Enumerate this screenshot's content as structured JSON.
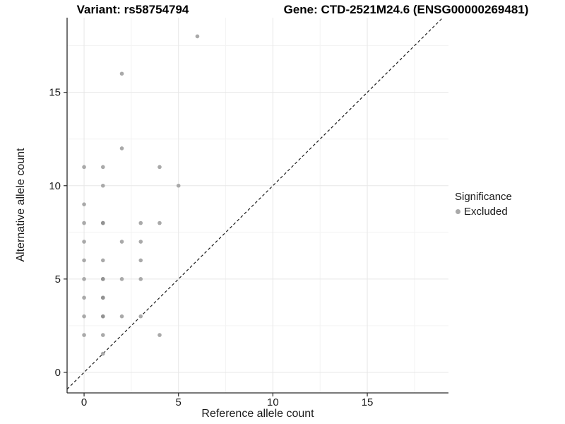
{
  "header": {
    "variant_title": "Variant: rs58754794",
    "gene_title": "Gene: CTD-2521M24.6 (ENSG00000269481)"
  },
  "chart_data": {
    "type": "scatter",
    "title_left": "Variant: rs58754794",
    "title_right": "Gene: CTD-2521M24.6 (ENSG00000269481)",
    "xlabel": "Reference allele count",
    "ylabel": "Alternative allele count",
    "x_ticks": [
      0,
      5,
      10,
      15
    ],
    "y_ticks": [
      0,
      5,
      10,
      15
    ],
    "minor_ticks_x": [
      2.5,
      7.5,
      12.5,
      17.5
    ],
    "minor_ticks_y": [
      2.5,
      7.5,
      12.5,
      17.5
    ],
    "xlim": [
      -0.9,
      19.3
    ],
    "ylim": [
      -1.1,
      19.0
    ],
    "grid": true,
    "points": [
      [
        0,
        2
      ],
      [
        0,
        3
      ],
      [
        0,
        4
      ],
      [
        0,
        5
      ],
      [
        0,
        6
      ],
      [
        0,
        7
      ],
      [
        0,
        8
      ],
      [
        0,
        9
      ],
      [
        0,
        11
      ],
      [
        1,
        1
      ],
      [
        1,
        2
      ],
      [
        1,
        3
      ],
      [
        1,
        4
      ],
      [
        1,
        5
      ],
      [
        1,
        6
      ],
      [
        1,
        8
      ],
      [
        1,
        10
      ],
      [
        1,
        11
      ],
      [
        2,
        3
      ],
      [
        2,
        5
      ],
      [
        2,
        7
      ],
      [
        2,
        12
      ],
      [
        2,
        16
      ],
      [
        3,
        3
      ],
      [
        3,
        5
      ],
      [
        3,
        6
      ],
      [
        3,
        7
      ],
      [
        3,
        8
      ],
      [
        4,
        2
      ],
      [
        4,
        8
      ],
      [
        4,
        11
      ],
      [
        5,
        10
      ],
      [
        6,
        18
      ]
    ],
    "dark_points": [
      [
        1,
        3
      ],
      [
        1,
        4
      ],
      [
        1,
        5
      ],
      [
        1,
        8
      ]
    ],
    "identity_line": {
      "type": "y=x",
      "style": "dashed",
      "color": "#1a1a1a"
    },
    "point_color": "#a9a9a9",
    "dark_point_color": "#929292",
    "legend": {
      "title": "Significance",
      "position": "right",
      "items": [
        {
          "label": "Excluded",
          "color": "#a9a9a9"
        }
      ]
    },
    "colors": {
      "grid_major": "#e7e7e7",
      "grid_minor": "#f3f3f3",
      "axis": "#2a2a2a",
      "tick_label": "#1a1a1a"
    }
  }
}
